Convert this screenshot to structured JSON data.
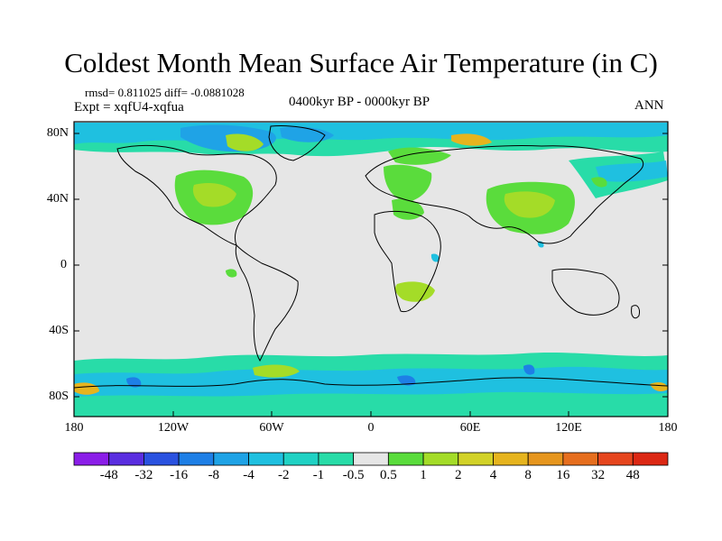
{
  "title": "Coldest Month Mean Surface Air Temperature (in C)",
  "stats": "rmsd= 0.811025 diff= -0.0881028",
  "experiment": "Expt = xqfU4-xqfua",
  "period": "0400kyr BP - 0000kyr BP",
  "season": "ANN",
  "lat_labels": [
    "80N",
    "40N",
    "0",
    "40S",
    "80S"
  ],
  "lon_labels": [
    "180",
    "120W",
    "60W",
    "0",
    "60E",
    "120E",
    "180"
  ],
  "colorbar": {
    "labels": [
      "-48",
      "-32",
      "-16",
      "-8",
      "-4",
      "-2",
      "-1",
      "-0.5",
      "0.5",
      "1",
      "2",
      "4",
      "8",
      "16",
      "32",
      "48"
    ],
    "colors": [
      "#8b1ee8",
      "#5a2ee0",
      "#2a52e0",
      "#1e7fe6",
      "#1fa3e6",
      "#1fc0e0",
      "#20d2c4",
      "#28dca8",
      "#e6e6e6",
      "#5adc3c",
      "#a4dc28",
      "#d2d228",
      "#e6b41e",
      "#e6961e",
      "#e66e1e",
      "#e6461e",
      "#dc2814"
    ]
  },
  "colors": {
    "background_no_change": "#e6e6e6",
    "coast": "#000000"
  }
}
